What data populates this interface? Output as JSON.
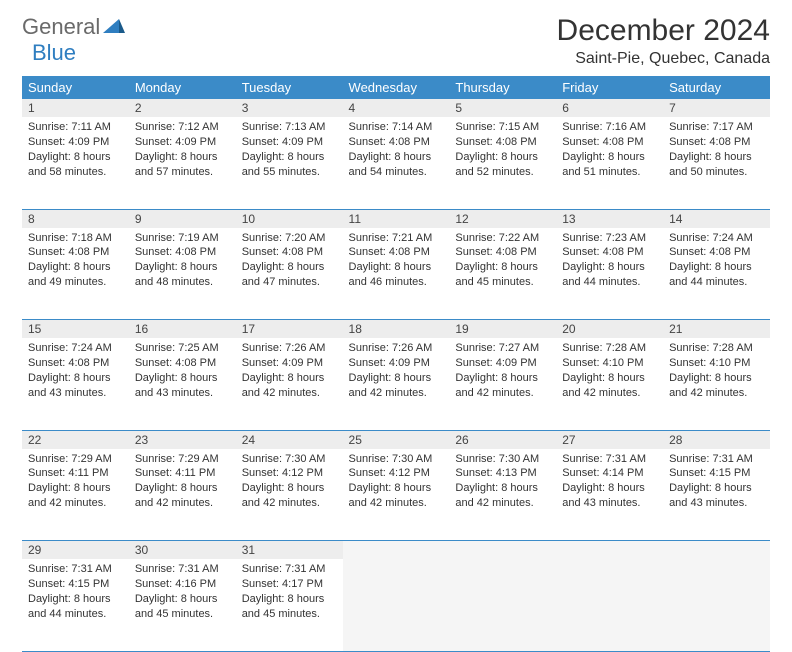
{
  "logo": {
    "part1": "General",
    "part2": "Blue"
  },
  "title": "December 2024",
  "location": "Saint-Pie, Quebec, Canada",
  "colors": {
    "header_bg": "#3b8bc8",
    "header_text": "#ffffff",
    "daynum_bg": "#ededed",
    "border": "#3b8bc8",
    "logo_gray": "#6a6a6a",
    "logo_blue": "#2f7ec0"
  },
  "typography": {
    "title_fontsize": 30,
    "location_fontsize": 16,
    "header_fontsize": 13,
    "daynum_fontsize": 12,
    "cell_fontsize": 11
  },
  "weekdays": [
    "Sunday",
    "Monday",
    "Tuesday",
    "Wednesday",
    "Thursday",
    "Friday",
    "Saturday"
  ],
  "weeks": [
    {
      "nums": [
        "1",
        "2",
        "3",
        "4",
        "5",
        "6",
        "7"
      ],
      "cells": [
        {
          "sunrise": "Sunrise: 7:11 AM",
          "sunset": "Sunset: 4:09 PM",
          "day1": "Daylight: 8 hours",
          "day2": "and 58 minutes."
        },
        {
          "sunrise": "Sunrise: 7:12 AM",
          "sunset": "Sunset: 4:09 PM",
          "day1": "Daylight: 8 hours",
          "day2": "and 57 minutes."
        },
        {
          "sunrise": "Sunrise: 7:13 AM",
          "sunset": "Sunset: 4:09 PM",
          "day1": "Daylight: 8 hours",
          "day2": "and 55 minutes."
        },
        {
          "sunrise": "Sunrise: 7:14 AM",
          "sunset": "Sunset: 4:08 PM",
          "day1": "Daylight: 8 hours",
          "day2": "and 54 minutes."
        },
        {
          "sunrise": "Sunrise: 7:15 AM",
          "sunset": "Sunset: 4:08 PM",
          "day1": "Daylight: 8 hours",
          "day2": "and 52 minutes."
        },
        {
          "sunrise": "Sunrise: 7:16 AM",
          "sunset": "Sunset: 4:08 PM",
          "day1": "Daylight: 8 hours",
          "day2": "and 51 minutes."
        },
        {
          "sunrise": "Sunrise: 7:17 AM",
          "sunset": "Sunset: 4:08 PM",
          "day1": "Daylight: 8 hours",
          "day2": "and 50 minutes."
        }
      ]
    },
    {
      "nums": [
        "8",
        "9",
        "10",
        "11",
        "12",
        "13",
        "14"
      ],
      "cells": [
        {
          "sunrise": "Sunrise: 7:18 AM",
          "sunset": "Sunset: 4:08 PM",
          "day1": "Daylight: 8 hours",
          "day2": "and 49 minutes."
        },
        {
          "sunrise": "Sunrise: 7:19 AM",
          "sunset": "Sunset: 4:08 PM",
          "day1": "Daylight: 8 hours",
          "day2": "and 48 minutes."
        },
        {
          "sunrise": "Sunrise: 7:20 AM",
          "sunset": "Sunset: 4:08 PM",
          "day1": "Daylight: 8 hours",
          "day2": "and 47 minutes."
        },
        {
          "sunrise": "Sunrise: 7:21 AM",
          "sunset": "Sunset: 4:08 PM",
          "day1": "Daylight: 8 hours",
          "day2": "and 46 minutes."
        },
        {
          "sunrise": "Sunrise: 7:22 AM",
          "sunset": "Sunset: 4:08 PM",
          "day1": "Daylight: 8 hours",
          "day2": "and 45 minutes."
        },
        {
          "sunrise": "Sunrise: 7:23 AM",
          "sunset": "Sunset: 4:08 PM",
          "day1": "Daylight: 8 hours",
          "day2": "and 44 minutes."
        },
        {
          "sunrise": "Sunrise: 7:24 AM",
          "sunset": "Sunset: 4:08 PM",
          "day1": "Daylight: 8 hours",
          "day2": "and 44 minutes."
        }
      ]
    },
    {
      "nums": [
        "15",
        "16",
        "17",
        "18",
        "19",
        "20",
        "21"
      ],
      "cells": [
        {
          "sunrise": "Sunrise: 7:24 AM",
          "sunset": "Sunset: 4:08 PM",
          "day1": "Daylight: 8 hours",
          "day2": "and 43 minutes."
        },
        {
          "sunrise": "Sunrise: 7:25 AM",
          "sunset": "Sunset: 4:08 PM",
          "day1": "Daylight: 8 hours",
          "day2": "and 43 minutes."
        },
        {
          "sunrise": "Sunrise: 7:26 AM",
          "sunset": "Sunset: 4:09 PM",
          "day1": "Daylight: 8 hours",
          "day2": "and 42 minutes."
        },
        {
          "sunrise": "Sunrise: 7:26 AM",
          "sunset": "Sunset: 4:09 PM",
          "day1": "Daylight: 8 hours",
          "day2": "and 42 minutes."
        },
        {
          "sunrise": "Sunrise: 7:27 AM",
          "sunset": "Sunset: 4:09 PM",
          "day1": "Daylight: 8 hours",
          "day2": "and 42 minutes."
        },
        {
          "sunrise": "Sunrise: 7:28 AM",
          "sunset": "Sunset: 4:10 PM",
          "day1": "Daylight: 8 hours",
          "day2": "and 42 minutes."
        },
        {
          "sunrise": "Sunrise: 7:28 AM",
          "sunset": "Sunset: 4:10 PM",
          "day1": "Daylight: 8 hours",
          "day2": "and 42 minutes."
        }
      ]
    },
    {
      "nums": [
        "22",
        "23",
        "24",
        "25",
        "26",
        "27",
        "28"
      ],
      "cells": [
        {
          "sunrise": "Sunrise: 7:29 AM",
          "sunset": "Sunset: 4:11 PM",
          "day1": "Daylight: 8 hours",
          "day2": "and 42 minutes."
        },
        {
          "sunrise": "Sunrise: 7:29 AM",
          "sunset": "Sunset: 4:11 PM",
          "day1": "Daylight: 8 hours",
          "day2": "and 42 minutes."
        },
        {
          "sunrise": "Sunrise: 7:30 AM",
          "sunset": "Sunset: 4:12 PM",
          "day1": "Daylight: 8 hours",
          "day2": "and 42 minutes."
        },
        {
          "sunrise": "Sunrise: 7:30 AM",
          "sunset": "Sunset: 4:12 PM",
          "day1": "Daylight: 8 hours",
          "day2": "and 42 minutes."
        },
        {
          "sunrise": "Sunrise: 7:30 AM",
          "sunset": "Sunset: 4:13 PM",
          "day1": "Daylight: 8 hours",
          "day2": "and 42 minutes."
        },
        {
          "sunrise": "Sunrise: 7:31 AM",
          "sunset": "Sunset: 4:14 PM",
          "day1": "Daylight: 8 hours",
          "day2": "and 43 minutes."
        },
        {
          "sunrise": "Sunrise: 7:31 AM",
          "sunset": "Sunset: 4:15 PM",
          "day1": "Daylight: 8 hours",
          "day2": "and 43 minutes."
        }
      ]
    },
    {
      "nums": [
        "29",
        "30",
        "31",
        "",
        "",
        "",
        ""
      ],
      "cells": [
        {
          "sunrise": "Sunrise: 7:31 AM",
          "sunset": "Sunset: 4:15 PM",
          "day1": "Daylight: 8 hours",
          "day2": "and 44 minutes."
        },
        {
          "sunrise": "Sunrise: 7:31 AM",
          "sunset": "Sunset: 4:16 PM",
          "day1": "Daylight: 8 hours",
          "day2": "and 45 minutes."
        },
        {
          "sunrise": "Sunrise: 7:31 AM",
          "sunset": "Sunset: 4:17 PM",
          "day1": "Daylight: 8 hours",
          "day2": "and 45 minutes."
        },
        null,
        null,
        null,
        null
      ]
    }
  ]
}
